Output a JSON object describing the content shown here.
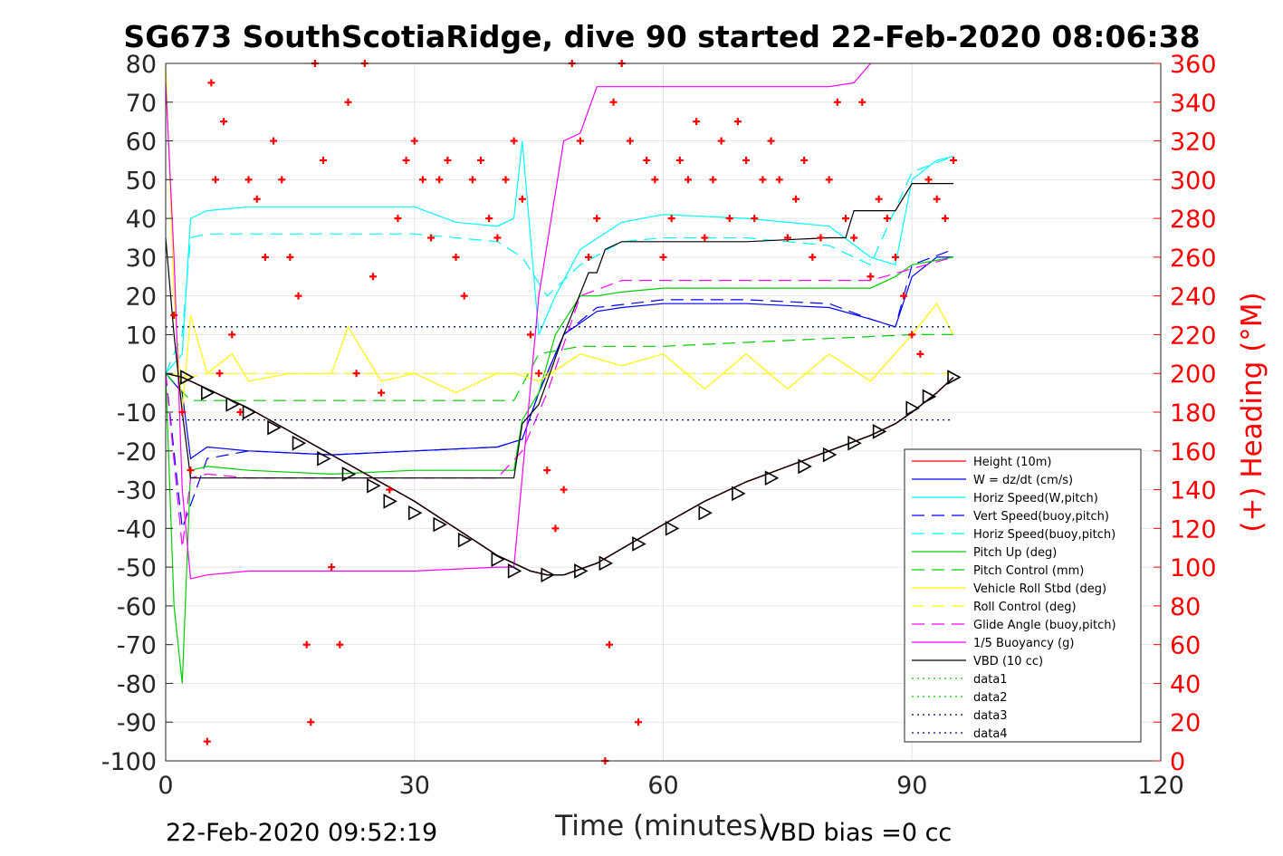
{
  "chart_data": {
    "type": "line",
    "title": "SG673 SouthScotiaRidge, dive 90 started 22-Feb-2020 08:06:38",
    "xlabel": "Time (minutes)",
    "ylabel": "",
    "y2label": "(+) Heading (°M)",
    "xlim": [
      0,
      120
    ],
    "ylim": [
      -100,
      80
    ],
    "y2lim": [
      0,
      360
    ],
    "x_ticks": [
      "0",
      "30",
      "60",
      "90",
      "120"
    ],
    "y_ticks": [
      "80",
      "70",
      "60",
      "50",
      "40",
      "30",
      "20",
      "10",
      "0",
      "-10",
      "-20",
      "-30",
      "-40",
      "-50",
      "-60",
      "-70",
      "-80",
      "-90",
      "-100"
    ],
    "y2_ticks": [
      "360",
      "340",
      "320",
      "300",
      "280",
      "260",
      "240",
      "220",
      "200",
      "180",
      "160",
      "140",
      "120",
      "100",
      "80",
      "60",
      "40",
      "20",
      "0"
    ],
    "grid": true,
    "legend_position": "bottom-right",
    "footer_left": "22-Feb-2020 09:52:19",
    "footer_right": "VBD bias =0 cc",
    "series": [
      {
        "name": "Height (10m)",
        "color": "#ff0000",
        "style": "solid",
        "x": [
          0,
          2,
          5,
          10,
          15,
          20,
          25,
          30,
          35,
          40,
          44,
          46,
          48,
          52,
          56,
          60,
          65,
          70,
          75,
          80,
          85,
          88,
          90,
          93,
          95
        ],
        "y": [
          0,
          -1,
          -4,
          -9,
          -15,
          -21,
          -27,
          -33,
          -40,
          -47,
          -51,
          -52,
          -52,
          -49,
          -44,
          -39,
          -33,
          -28,
          -24,
          -20,
          -16,
          -13,
          -10,
          -5,
          -1
        ]
      },
      {
        "name": "W = dz/dt (cm/s)",
        "color": "#0000ff",
        "style": "solid",
        "x": [
          0,
          2,
          3,
          5,
          10,
          20,
          30,
          40,
          43,
          45,
          48,
          52,
          55,
          60,
          70,
          80,
          85,
          88,
          90,
          93,
          95
        ],
        "y": [
          0,
          -5,
          -22,
          -19,
          -20,
          -21,
          -20,
          -19,
          -17,
          -5,
          10,
          16,
          17,
          18,
          18,
          17,
          14,
          12,
          25,
          30,
          30
        ]
      },
      {
        "name": "Horiz Speed(W,pitch)",
        "color": "#00ffff",
        "style": "solid",
        "x": [
          0,
          2,
          3,
          5,
          10,
          20,
          30,
          35,
          40,
          42,
          43,
          45,
          47,
          50,
          55,
          60,
          70,
          80,
          85,
          88,
          90,
          93,
          95
        ],
        "y": [
          0,
          5,
          40,
          42,
          43,
          43,
          43,
          39,
          38,
          40,
          60,
          10,
          20,
          32,
          39,
          41,
          40,
          38,
          30,
          28,
          50,
          55,
          56
        ]
      },
      {
        "name": "Vert Speed(buoy,pitch)",
        "color": "#0000ff",
        "style": "dashed",
        "x": [
          0,
          2,
          5,
          10,
          20,
          30,
          40,
          43,
          45,
          48,
          52,
          60,
          70,
          80,
          85,
          88,
          90,
          95
        ],
        "y": [
          0,
          -40,
          -22,
          -20,
          -21,
          -20,
          -19,
          -17,
          -5,
          10,
          17,
          19,
          19,
          18,
          14,
          12,
          28,
          32
        ]
      },
      {
        "name": "Horiz Speed(buoy,pitch)",
        "color": "#00ffff",
        "style": "dashed",
        "x": [
          0,
          2,
          3,
          5,
          10,
          20,
          30,
          40,
          43,
          46,
          50,
          55,
          60,
          70,
          80,
          85,
          90,
          95
        ],
        "y": [
          0,
          10,
          35,
          36,
          36,
          36,
          36,
          34,
          30,
          20,
          28,
          34,
          35,
          35,
          33,
          28,
          52,
          56
        ]
      },
      {
        "name": "Pitch Up (deg)",
        "color": "#00cc00",
        "style": "solid",
        "x": [
          0,
          1,
          2,
          3,
          5,
          10,
          20,
          30,
          40,
          42,
          43,
          45,
          47,
          50,
          52,
          55,
          60,
          70,
          80,
          85,
          88,
          90,
          95
        ],
        "y": [
          0,
          -60,
          -80,
          -25,
          -24,
          -25,
          -26,
          -25,
          -25,
          -25,
          -12,
          -5,
          10,
          20,
          20,
          21,
          22,
          22,
          22,
          22,
          25,
          28,
          30
        ]
      },
      {
        "name": "Pitch Control (mm)",
        "color": "#00cc00",
        "style": "dashed",
        "x": [
          0,
          3,
          5,
          10,
          20,
          30,
          40,
          42,
          45,
          50,
          60,
          70,
          80,
          90,
          95
        ],
        "y": [
          0,
          -7,
          -7,
          -7,
          -7,
          -7,
          -7,
          -7,
          5,
          7,
          7,
          8,
          9,
          10,
          10
        ]
      },
      {
        "name": "Vehicle Roll Stbd (deg)",
        "color": "#ffff00",
        "style": "solid",
        "x": [
          0,
          1,
          2,
          3,
          5,
          8,
          10,
          15,
          20,
          22,
          24,
          26,
          30,
          35,
          40,
          42,
          45,
          50,
          55,
          60,
          65,
          70,
          75,
          80,
          85,
          90,
          93,
          95
        ],
        "y": [
          80,
          20,
          -10,
          15,
          0,
          5,
          -2,
          0,
          0,
          12,
          5,
          -2,
          0,
          -5,
          0,
          0,
          -2,
          5,
          2,
          5,
          -4,
          5,
          -4,
          5,
          -2,
          10,
          18,
          10
        ]
      },
      {
        "name": "Roll Control (deg)",
        "color": "#ffff00",
        "style": "dashed",
        "x": [
          0,
          3,
          5,
          10,
          20,
          30,
          40,
          42,
          45,
          50,
          60,
          70,
          80,
          90,
          95
        ],
        "y": [
          0,
          -1,
          0,
          0,
          0,
          0,
          0,
          0,
          0,
          0,
          0,
          0,
          0,
          0,
          0
        ]
      },
      {
        "name": "Glide Angle (buoy,pitch)",
        "color": "#ff00ff",
        "style": "dashed",
        "x": [
          0,
          2,
          3,
          5,
          10,
          20,
          30,
          40,
          43,
          46,
          50,
          55,
          60,
          70,
          80,
          85,
          90,
          95
        ],
        "y": [
          0,
          -45,
          -27,
          -26,
          -27,
          -27,
          -27,
          -27,
          -20,
          -5,
          20,
          24,
          24,
          24,
          24,
          24,
          27,
          30
        ]
      },
      {
        "name": "1/5 Buoyancy (g)",
        "color": "#ff00ff",
        "style": "solid",
        "x": [
          0,
          1,
          2,
          3,
          5,
          10,
          20,
          30,
          40,
          42,
          45,
          48,
          50,
          52,
          55,
          60,
          70,
          80,
          83,
          85
        ],
        "y": [
          75,
          30,
          -30,
          -53,
          -52,
          -51,
          -51,
          -51,
          -50,
          -50,
          20,
          60,
          62,
          74,
          74,
          74,
          74,
          74,
          75,
          80
        ]
      },
      {
        "name": "VBD (10 cc)",
        "color": "#000000",
        "style": "solid",
        "x": [
          0,
          1,
          2,
          3,
          5,
          10,
          20,
          30,
          40,
          42,
          43,
          45,
          48,
          51,
          52,
          53,
          55,
          60,
          70,
          80,
          82,
          83,
          85,
          88,
          90,
          95
        ],
        "y": [
          35,
          10,
          -10,
          -27,
          -27,
          -27,
          -27,
          -27,
          -27,
          -27,
          -13,
          -8,
          10,
          26,
          26,
          32,
          34,
          34,
          34,
          35,
          35,
          42,
          42,
          42,
          49,
          49
        ]
      },
      {
        "name": "data1",
        "color": "#00cc00",
        "style": "dotted",
        "x": [],
        "y": []
      },
      {
        "name": "data2",
        "color": "#00cc00",
        "style": "dotted",
        "x": [
          0,
          95
        ],
        "y": [
          12,
          12
        ]
      },
      {
        "name": "data3",
        "color": "#000080",
        "style": "dotted",
        "x": [
          0,
          95
        ],
        "y": [
          12,
          12
        ]
      },
      {
        "name": "data4",
        "color": "#000080",
        "style": "dotted",
        "x": [
          0,
          95
        ],
        "y": [
          -12,
          -12
        ]
      }
    ],
    "heading_series": {
      "name": "(+) Heading",
      "color": "#ff0000",
      "marker": "+",
      "x": [
        1,
        2,
        3,
        5,
        5.5,
        6,
        6.5,
        7,
        8,
        9,
        10,
        11,
        12,
        13,
        14,
        15,
        16,
        17,
        17.5,
        18,
        19,
        20,
        21,
        22,
        23,
        24,
        25,
        26,
        27,
        28,
        29,
        30,
        31,
        32,
        33,
        34,
        35,
        36,
        37,
        38,
        39,
        40,
        41,
        42,
        43,
        44,
        45,
        46,
        47,
        48,
        49,
        50,
        51,
        52,
        53,
        53.5,
        54,
        55,
        56,
        57,
        58,
        59,
        60,
        61,
        62,
        63,
        64,
        65,
        66,
        67,
        68,
        69,
        70,
        71,
        72,
        73,
        74,
        75,
        76,
        77,
        78,
        79,
        80,
        81,
        82,
        83,
        84,
        85,
        86,
        87,
        88,
        89,
        90,
        91,
        92,
        93,
        94,
        95
      ],
      "y": [
        230,
        180,
        150,
        10,
        350,
        300,
        200,
        330,
        220,
        180,
        300,
        290,
        260,
        320,
        300,
        260,
        240,
        60,
        20,
        360,
        310,
        100,
        60,
        340,
        200,
        360,
        250,
        190,
        140,
        280,
        310,
        320,
        300,
        270,
        300,
        310,
        260,
        240,
        300,
        310,
        280,
        270,
        300,
        320,
        290,
        220,
        200,
        150,
        120,
        140,
        360,
        320,
        260,
        280,
        0,
        60,
        340,
        360,
        320,
        20,
        310,
        300,
        260,
        280,
        310,
        300,
        330,
        270,
        300,
        320,
        280,
        330,
        310,
        280,
        300,
        320,
        300,
        270,
        290,
        310,
        260,
        270,
        300,
        340,
        280,
        270,
        340,
        250,
        290,
        280,
        260,
        240,
        220,
        210,
        300,
        290,
        280,
        310
      ]
    },
    "triangle_markers": {
      "x": [
        2.5,
        5,
        8,
        10,
        13,
        16,
        19,
        22,
        25,
        27,
        30,
        33,
        36,
        40,
        42,
        46,
        50,
        53,
        57,
        61,
        65,
        69,
        73,
        77,
        80,
        83,
        86,
        90,
        92,
        95
      ],
      "y": [
        -1,
        -5,
        -8,
        -10,
        -14,
        -18,
        -22,
        -26,
        -29,
        -33,
        -36,
        -39,
        -43,
        -48,
        -51,
        -52,
        -51,
        -49,
        -44,
        -40,
        -36,
        -31,
        -27,
        -24,
        -21,
        -18,
        -15,
        -9,
        -6,
        -1
      ]
    }
  }
}
